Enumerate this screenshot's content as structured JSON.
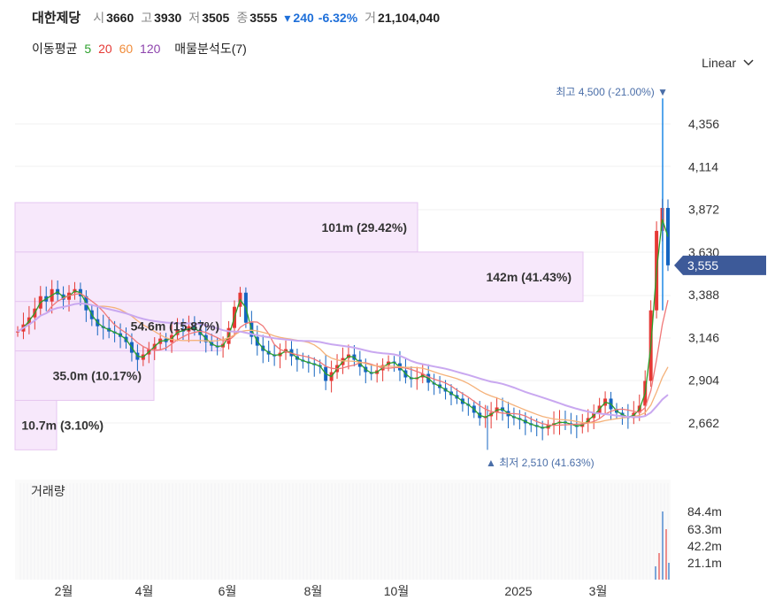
{
  "header": {
    "name": "대한제당",
    "open_label": "시",
    "open": "3660",
    "high_label": "고",
    "high": "3930",
    "low_label": "저",
    "low": "3505",
    "close_label": "종",
    "close": "3555",
    "change_arrow": "▾",
    "change": "240",
    "change_pct": "-6.32%",
    "volume_label": "거",
    "volume": "21,104,040"
  },
  "ma_legend": {
    "label": "이동평균",
    "periods": [
      {
        "text": "5",
        "color": "#2ca02c"
      },
      {
        "text": "20",
        "color": "#e53935"
      },
      {
        "text": "60",
        "color": "#f08c3a"
      },
      {
        "text": "120",
        "color": "#8e44ad"
      }
    ],
    "profile_label": "매물분석도(7)"
  },
  "scale_selector": {
    "label": "Linear"
  },
  "colors": {
    "up": "#e53935",
    "down": "#1565c0",
    "ma5": "#2ca02c",
    "ma20": "#f07878",
    "ma60": "#f5b27a",
    "ma120": "#c9a8f0",
    "profile_fill": "#f7e8fb",
    "profile_stroke": "#e6c6f0"
  },
  "chart_data": {
    "type": "candlestick",
    "y_ticks": [
      "4,356",
      "4,114",
      "3,872",
      "3,630",
      "3,388",
      "3,146",
      "2,904",
      "2,662"
    ],
    "ylim": [
      2500,
      4560
    ],
    "x_ticks": [
      "2월",
      "4월",
      "6월",
      "8월",
      "10월",
      "2025",
      "3월"
    ],
    "current_price": "3,555",
    "high_annotation": {
      "label": "최고",
      "value": "4,500",
      "pct": "(-21.00%)",
      "arrow": "▼"
    },
    "low_annotation": {
      "label": "최저",
      "value": "2,510",
      "pct": "(41.63%)",
      "arrow": "▲"
    },
    "volume_profile": [
      {
        "label": "101m (29.42%)",
        "price_low": 3630,
        "price_high": 3910
      },
      {
        "label": "142m (41.43%)",
        "price_low": 3350,
        "price_high": 3630
      },
      {
        "label": "54.6m (15.87%)",
        "price_low": 3070,
        "price_high": 3350
      },
      {
        "label": "35.0m (10.17%)",
        "price_low": 2790,
        "price_high": 3070
      },
      {
        "label": "10.7m (3.10%)",
        "price_low": 2510,
        "price_high": 2790
      }
    ],
    "volume_panel": {
      "title": "거래량",
      "y_ticks": [
        "84.4m",
        "63.3m",
        "42.2m",
        "21.1m"
      ]
    },
    "close_series": [
      3180,
      3220,
      3260,
      3310,
      3380,
      3350,
      3420,
      3390,
      3360,
      3400,
      3420,
      3380,
      3300,
      3250,
      3210,
      3200,
      3180,
      3170,
      3150,
      3120,
      3060,
      3020,
      3050,
      3080,
      3110,
      3140,
      3120,
      3160,
      3190,
      3180,
      3210,
      3190,
      3160,
      3120,
      3100,
      3090,
      3110,
      3200,
      3320,
      3400,
      3230,
      3150,
      3100,
      3070,
      3050,
      3040,
      3060,
      3080,
      3040,
      3020,
      3010,
      3000,
      2990,
      2980,
      2900,
      2950,
      2990,
      3030,
      3050,
      3020,
      2980,
      2950,
      2940,
      2960,
      2990,
      3010,
      3000,
      2960,
      2920,
      2910,
      2920,
      2940,
      2890,
      2880,
      2860,
      2840,
      2820,
      2800,
      2770,
      2760,
      2720,
      2690,
      2700,
      2720,
      2750,
      2730,
      2700,
      2690,
      2680,
      2660,
      2650,
      2640,
      2630,
      2650,
      2660,
      2670,
      2660,
      2650,
      2640,
      2660,
      2690,
      2720,
      2760,
      2800,
      2740,
      2720,
      2700,
      2690,
      2720,
      2760,
      2900,
      3300,
      3750,
      3880,
      3555
    ]
  }
}
